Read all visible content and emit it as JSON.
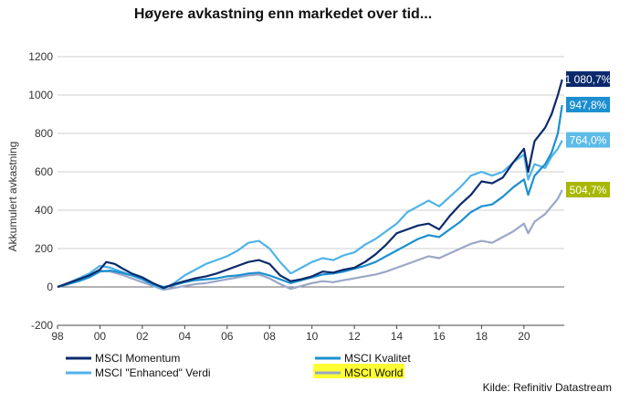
{
  "chart_data": {
    "type": "line",
    "title": "Høyere avkastning enn markedet over tid...",
    "ylabel": "Akkumulert avkastning",
    "xlabel": "",
    "xlim": [
      1998,
      2021.9
    ],
    "ylim": [
      -200,
      1200
    ],
    "y_ticks": [
      -200,
      0,
      200,
      400,
      600,
      800,
      1000,
      1200
    ],
    "y_tick_labels": [
      "-200",
      "0",
      "200",
      "400",
      "600",
      "800",
      "1000",
      "1200"
    ],
    "x_ticks": [
      1998,
      2000,
      2002,
      2004,
      2006,
      2008,
      2010,
      2012,
      2014,
      2016,
      2018,
      2020
    ],
    "x_tick_labels": [
      "98",
      "00",
      "02",
      "04",
      "06",
      "08",
      "10",
      "12",
      "14",
      "16",
      "18",
      "20"
    ],
    "grid": "horizontal",
    "legend_position": "bottom",
    "source": "Kilde: Refinitiv Datastream",
    "series": [
      {
        "name": "MSCI Momentum",
        "color": "#0b2a6b",
        "end_label": "1 080,7%",
        "label_bg": "#0b2a6b",
        "x": [
          1998,
          1998.5,
          1999,
          1999.5,
          2000,
          2000.3,
          2000.7,
          2001,
          2001.5,
          2002,
          2002.5,
          2003,
          2003.5,
          2004,
          2004.5,
          2005,
          2005.5,
          2006,
          2006.5,
          2007,
          2007.5,
          2008,
          2008.5,
          2009,
          2009.5,
          2010,
          2010.5,
          2011,
          2011.5,
          2012,
          2012.5,
          2013,
          2013.5,
          2014,
          2014.5,
          2015,
          2015.5,
          2016,
          2016.5,
          2017,
          2017.5,
          2018,
          2018.5,
          2019,
          2019.5,
          2020,
          2020.2,
          2020.5,
          2021,
          2021.3,
          2021.6,
          2021.8
        ],
        "values": [
          0,
          20,
          40,
          60,
          90,
          130,
          120,
          100,
          70,
          50,
          20,
          -5,
          15,
          30,
          45,
          55,
          70,
          90,
          110,
          130,
          140,
          120,
          60,
          30,
          40,
          55,
          80,
          75,
          90,
          100,
          130,
          170,
          220,
          280,
          300,
          320,
          330,
          300,
          370,
          430,
          480,
          550,
          540,
          570,
          650,
          720,
          600,
          760,
          830,
          900,
          1000,
          1080.7
        ]
      },
      {
        "name": "MSCI \"Enhanced\" Verdi",
        "color": "#4fb3e8",
        "end_label": "764,0%",
        "label_bg": "#5dbbe8",
        "x": [
          1998,
          1998.5,
          1999,
          1999.5,
          2000,
          2000.5,
          2001,
          2001.5,
          2002,
          2002.5,
          2003,
          2003.5,
          2004,
          2004.5,
          2005,
          2005.5,
          2006,
          2006.5,
          2007,
          2007.5,
          2008,
          2008.5,
          2009,
          2009.5,
          2010,
          2010.5,
          2011,
          2011.5,
          2012,
          2012.5,
          2013,
          2013.5,
          2014,
          2014.5,
          2015,
          2015.5,
          2016,
          2016.5,
          2017,
          2017.5,
          2018,
          2018.5,
          2019,
          2019.5,
          2020,
          2020.2,
          2020.5,
          2021,
          2021.3,
          2021.6,
          2021.8
        ],
        "values": [
          0,
          20,
          45,
          70,
          110,
          100,
          80,
          60,
          40,
          10,
          -10,
          20,
          60,
          90,
          120,
          140,
          160,
          190,
          230,
          240,
          200,
          130,
          70,
          100,
          130,
          150,
          140,
          165,
          180,
          220,
          250,
          290,
          330,
          390,
          420,
          450,
          420,
          470,
          520,
          580,
          600,
          580,
          600,
          650,
          690,
          560,
          640,
          620,
          680,
          720,
          764.0
        ]
      },
      {
        "name": "MSCI Kvalitet",
        "color": "#1c8fd0",
        "end_label": "947,8%",
        "label_bg": "#1c8fd0",
        "x": [
          1998,
          1998.5,
          1999,
          1999.5,
          2000,
          2000.5,
          2001,
          2001.5,
          2002,
          2002.5,
          2003,
          2003.5,
          2004,
          2004.5,
          2005,
          2005.5,
          2006,
          2006.5,
          2007,
          2007.5,
          2008,
          2008.5,
          2009,
          2009.5,
          2010,
          2010.5,
          2011,
          2011.5,
          2012,
          2012.5,
          2013,
          2013.5,
          2014,
          2014.5,
          2015,
          2015.5,
          2016,
          2016.5,
          2017,
          2017.5,
          2018,
          2018.5,
          2019,
          2019.5,
          2020,
          2020.2,
          2020.5,
          2021,
          2021.3,
          2021.6,
          2021.8
        ],
        "values": [
          0,
          15,
          30,
          50,
          80,
          85,
          75,
          60,
          40,
          15,
          0,
          10,
          25,
          35,
          40,
          45,
          55,
          60,
          70,
          75,
          60,
          40,
          20,
          35,
          50,
          65,
          70,
          80,
          95,
          110,
          130,
          160,
          190,
          220,
          250,
          270,
          260,
          300,
          340,
          390,
          420,
          430,
          470,
          520,
          560,
          480,
          580,
          640,
          700,
          800,
          947.8
        ]
      },
      {
        "name": "MSCI World",
        "color": "#9aa7c7",
        "end_label": "504,7%",
        "label_bg": "#a8b800",
        "x": [
          1998,
          1998.5,
          1999,
          1999.5,
          2000,
          2000.5,
          2001,
          2001.5,
          2002,
          2002.5,
          2003,
          2003.5,
          2004,
          2004.5,
          2005,
          2005.5,
          2006,
          2006.5,
          2007,
          2007.5,
          2008,
          2008.5,
          2009,
          2009.5,
          2010,
          2010.5,
          2011,
          2011.5,
          2012,
          2012.5,
          2013,
          2013.5,
          2014,
          2014.5,
          2015,
          2015.5,
          2016,
          2016.5,
          2017,
          2017.5,
          2018,
          2018.5,
          2019,
          2019.5,
          2020,
          2020.2,
          2020.5,
          2021,
          2021.3,
          2021.6,
          2021.8
        ],
        "values": [
          0,
          15,
          35,
          55,
          85,
          80,
          65,
          45,
          25,
          5,
          -15,
          -5,
          5,
          15,
          20,
          30,
          40,
          50,
          60,
          65,
          45,
          15,
          -10,
          5,
          20,
          30,
          25,
          35,
          45,
          55,
          65,
          80,
          100,
          120,
          140,
          160,
          150,
          175,
          200,
          225,
          240,
          230,
          260,
          290,
          330,
          280,
          340,
          380,
          420,
          460,
          504.7
        ]
      }
    ],
    "legend_order": [
      "MSCI Momentum",
      "MSCI \"Enhanced\" Verdi",
      "MSCI Kvalitet",
      "MSCI World"
    ],
    "legend_highlight": "MSCI World",
    "legend_highlight_color": "#ffff33"
  }
}
